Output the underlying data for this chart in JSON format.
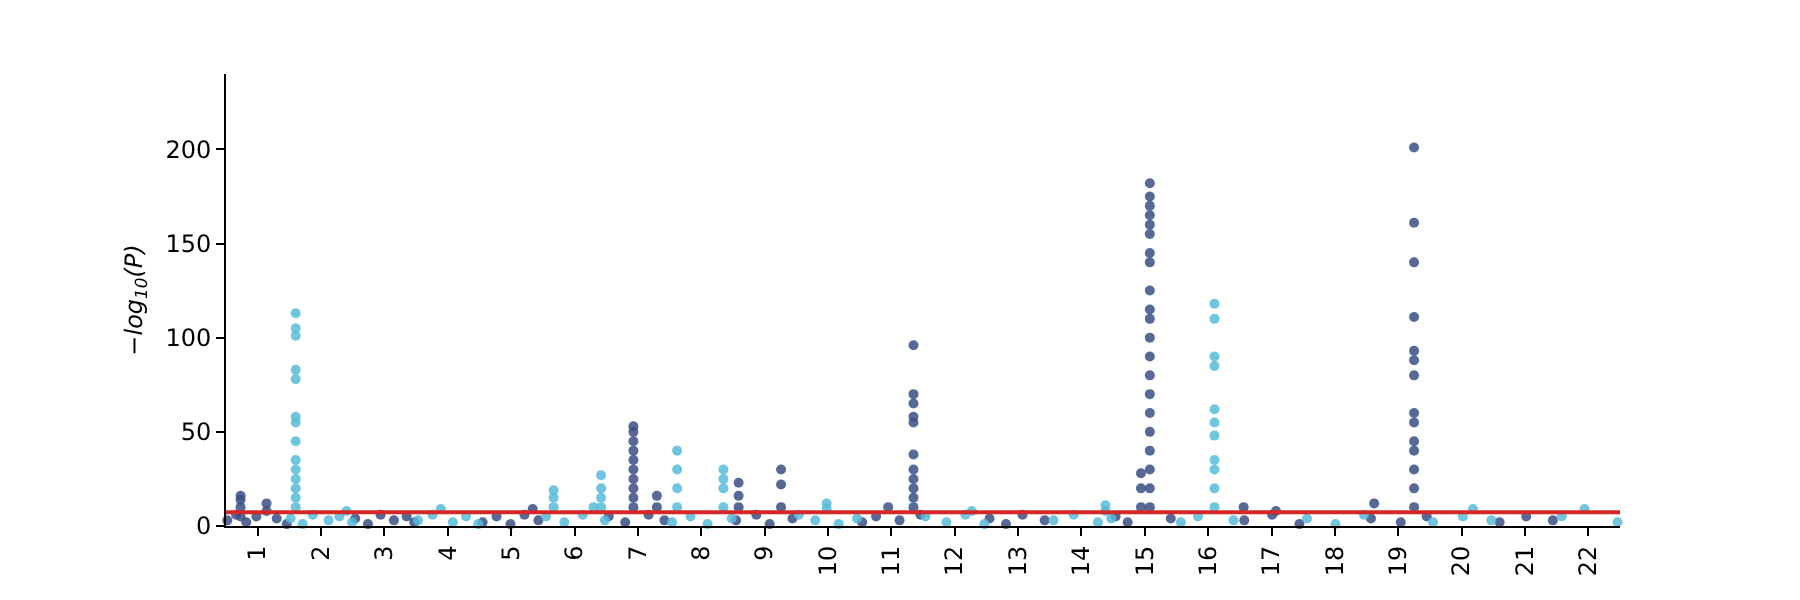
{
  "chart_data": {
    "type": "scatter",
    "ylabel": "−log$_{10}$(P)",
    "xlim": [
      0.5,
      22.5
    ],
    "ylim": [
      0,
      240
    ],
    "xticks": [
      1,
      2,
      3,
      4,
      5,
      6,
      7,
      8,
      9,
      10,
      11,
      12,
      13,
      14,
      15,
      16,
      17,
      18,
      19,
      20,
      21,
      22
    ],
    "yticks": [
      0,
      50,
      100,
      150,
      200
    ],
    "marker": "circle",
    "ref_lines": [
      {
        "axis": "y",
        "value": 7.3,
        "color": "#d62728"
      }
    ],
    "series": [
      {
        "color": "#3a4f85",
        "x": [
          0.52,
          0.66,
          0.82,
          0.98,
          1.3,
          1.46,
          0.73,
          0.73,
          0.73,
          0.73,
          1.14,
          1.14,
          2.54,
          2.74,
          2.94,
          3.15,
          3.35,
          3.47,
          4.55,
          4.77,
          4.99,
          5.21,
          5.43,
          5.34,
          6.54,
          6.8,
          7.17,
          7.42,
          6.93,
          6.93,
          6.93,
          6.93,
          6.93,
          6.93,
          6.93,
          6.93,
          6.93,
          6.93,
          7.3,
          7.3,
          8.55,
          8.87,
          9.08,
          9.44,
          8.59,
          8.59,
          8.59,
          9.26,
          9.26,
          9.26,
          10.54,
          10.76,
          11.13,
          11.46,
          10.95,
          11.35,
          11.35,
          11.35,
          11.35,
          11.35,
          11.35,
          11.35,
          11.35,
          11.35,
          11.35,
          11.35,
          12.55,
          12.81,
          13.07,
          13.42,
          14.54,
          14.73,
          15.41,
          14.94,
          14.94,
          14.94,
          15.08,
          15.08,
          15.08,
          15.08,
          15.08,
          15.08,
          15.08,
          15.08,
          15.08,
          15.08,
          15.08,
          15.08,
          15.08,
          15.08,
          15.08,
          15.08,
          15.08,
          15.08,
          15.08,
          15.08,
          15.08,
          16.57,
          17.01,
          17.44,
          16.56,
          17.07,
          18.57,
          19.04,
          19.45,
          18.62,
          19.25,
          19.25,
          19.25,
          19.25,
          19.25,
          19.25,
          19.25,
          19.25,
          19.25,
          19.25,
          19.25,
          19.25,
          19.25,
          19.25,
          20.6,
          21.02,
          21.44
        ],
        "values": [
          3,
          6,
          2,
          5,
          4,
          1,
          5,
          10,
          14,
          16,
          8,
          12,
          4,
          1,
          6,
          3,
          5,
          2,
          2,
          5,
          1,
          6,
          3,
          9,
          5,
          2,
          6,
          3,
          10,
          15,
          20,
          25,
          30,
          35,
          40,
          45,
          50,
          53,
          10,
          16,
          3,
          6,
          1,
          4,
          10,
          16,
          23,
          10,
          22,
          30,
          2,
          5,
          3,
          6,
          10,
          10,
          15,
          20,
          25,
          30,
          38,
          55,
          58,
          65,
          70,
          96,
          4,
          1,
          6,
          3,
          5,
          2,
          4,
          10,
          20,
          28,
          10,
          20,
          30,
          40,
          50,
          60,
          70,
          80,
          90,
          100,
          110,
          115,
          125,
          140,
          145,
          155,
          160,
          165,
          170,
          175,
          182,
          3,
          6,
          1,
          10,
          8,
          4,
          2,
          5,
          12,
          10,
          20,
          30,
          40,
          45,
          55,
          60,
          80,
          88,
          93,
          111,
          140,
          161,
          201,
          2,
          5,
          3
        ]
      },
      {
        "color": "#56bcd8",
        "x": [
          1.52,
          1.71,
          1.87,
          2.12,
          2.29,
          2.49,
          1.6,
          1.6,
          1.6,
          1.6,
          1.6,
          1.6,
          1.6,
          1.6,
          1.6,
          1.6,
          1.6,
          1.6,
          1.6,
          1.6,
          2.4,
          3.53,
          3.76,
          4.08,
          4.29,
          4.48,
          3.89,
          5.55,
          5.84,
          6.13,
          6.48,
          5.67,
          5.67,
          5.67,
          6.3,
          6.42,
          6.42,
          6.42,
          6.42,
          7.54,
          7.83,
          8.1,
          8.48,
          7.62,
          7.62,
          7.62,
          7.62,
          8.35,
          8.35,
          8.35,
          8.35,
          9.54,
          9.8,
          10.17,
          10.46,
          9.98,
          9.98,
          11.54,
          11.87,
          12.17,
          12.47,
          12.27,
          13.56,
          13.88,
          14.26,
          14.47,
          14.38,
          14.38,
          15.57,
          15.84,
          16.4,
          16.1,
          16.1,
          16.1,
          16.1,
          16.1,
          16.1,
          16.1,
          16.1,
          16.1,
          16.1,
          16.1,
          17.56,
          18.01,
          18.46,
          19.55,
          20.02,
          20.47,
          20.18,
          21.58,
          21.94,
          22.46
        ],
        "values": [
          4,
          1,
          6,
          3,
          5,
          2,
          10,
          15,
          20,
          25,
          30,
          35,
          45,
          55,
          58,
          78,
          83,
          101,
          105,
          113,
          8,
          3,
          6,
          2,
          5,
          1,
          9,
          5,
          2,
          6,
          3,
          10,
          15,
          19,
          10,
          10,
          15,
          20,
          27,
          2,
          5,
          1,
          4,
          10,
          20,
          30,
          40,
          10,
          20,
          25,
          30,
          6,
          3,
          1,
          4,
          9,
          12,
          5,
          2,
          6,
          1,
          8,
          3,
          6,
          2,
          4,
          8,
          11,
          2,
          5,
          3,
          10,
          20,
          30,
          35,
          48,
          55,
          62,
          85,
          90,
          110,
          118,
          4,
          1,
          6,
          2,
          5,
          3,
          9,
          5,
          9,
          2
        ]
      }
    ]
  }
}
